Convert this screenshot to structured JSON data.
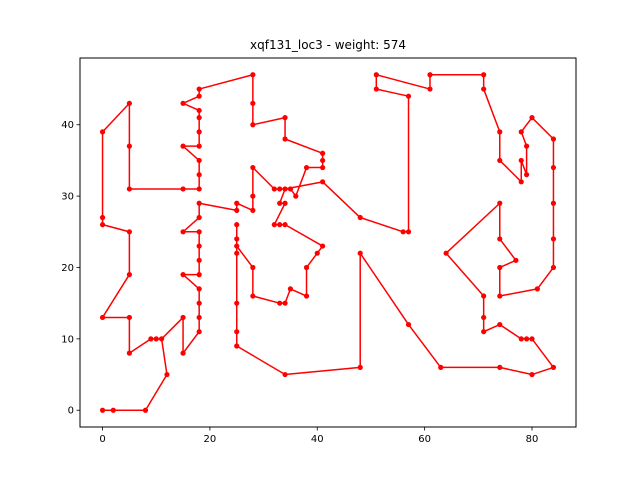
{
  "chart_data": {
    "type": "line",
    "title": "xqf131_loc3 - weight: 574",
    "xlabel": "",
    "ylabel": "",
    "xlim": [
      -4.2,
      88.2
    ],
    "ylim": [
      -2.35,
      49.35
    ],
    "xticks": [
      0,
      20,
      40,
      60,
      80
    ],
    "yticks": [
      0,
      10,
      20,
      30,
      40
    ],
    "grid": false,
    "legend": "none",
    "series_color": "#ff0000",
    "tour": [
      [
        0,
        0
      ],
      [
        2,
        0
      ],
      [
        8,
        0
      ],
      [
        12,
        5
      ],
      [
        11,
        10
      ],
      [
        10,
        10
      ],
      [
        9,
        10
      ],
      [
        5,
        8
      ],
      [
        5,
        13
      ],
      [
        0,
        13
      ],
      [
        5,
        19
      ],
      [
        5,
        25
      ],
      [
        0,
        26
      ],
      [
        0,
        27
      ],
      [
        0,
        39
      ],
      [
        5,
        43
      ],
      [
        5,
        37
      ],
      [
        5,
        31
      ],
      [
        15,
        31
      ],
      [
        18,
        31
      ],
      [
        18,
        33
      ],
      [
        18,
        35
      ],
      [
        15,
        37
      ],
      [
        18,
        37
      ],
      [
        18,
        39
      ],
      [
        18,
        41
      ],
      [
        18,
        42
      ],
      [
        15,
        43
      ],
      [
        18,
        44
      ],
      [
        18,
        45
      ],
      [
        28,
        47
      ],
      [
        28,
        43
      ],
      [
        28,
        40
      ],
      [
        34,
        41
      ],
      [
        34,
        38
      ],
      [
        41,
        36
      ],
      [
        41,
        35
      ],
      [
        41,
        34
      ],
      [
        38,
        34
      ],
      [
        36,
        30
      ],
      [
        35,
        31
      ],
      [
        34,
        31
      ],
      [
        33,
        31
      ],
      [
        32,
        31
      ],
      [
        28,
        34
      ],
      [
        28,
        30
      ],
      [
        28,
        28
      ],
      [
        25,
        29
      ],
      [
        25,
        28
      ],
      [
        18,
        29
      ],
      [
        18,
        27
      ],
      [
        15,
        25
      ],
      [
        18,
        25
      ],
      [
        18,
        23
      ],
      [
        18,
        21
      ],
      [
        18,
        19
      ],
      [
        15,
        19
      ],
      [
        18,
        17
      ],
      [
        18,
        15
      ],
      [
        18,
        13
      ],
      [
        18,
        11
      ],
      [
        15,
        8
      ],
      [
        15,
        13
      ],
      [
        11,
        10
      ]
    ],
    "tour_b": [
      [
        25,
        26
      ],
      [
        25,
        24
      ],
      [
        25,
        23
      ],
      [
        28,
        20
      ],
      [
        28,
        16
      ],
      [
        33,
        15
      ],
      [
        34,
        15
      ],
      [
        35,
        17
      ],
      [
        38,
        16
      ],
      [
        38,
        20
      ],
      [
        40,
        22
      ],
      [
        41,
        23
      ],
      [
        34,
        26
      ],
      [
        33,
        26
      ],
      [
        32,
        26
      ],
      [
        34,
        29
      ],
      [
        33,
        29
      ],
      [
        34,
        31
      ],
      [
        41,
        32
      ],
      [
        48,
        27
      ],
      [
        56,
        25
      ],
      [
        57,
        25
      ],
      [
        57,
        44
      ],
      [
        51,
        45
      ],
      [
        51,
        47
      ],
      [
        61,
        45
      ],
      [
        61,
        47
      ],
      [
        71,
        47
      ],
      [
        71,
        45
      ],
      [
        74,
        39
      ],
      [
        74,
        35
      ],
      [
        78,
        32
      ],
      [
        78,
        35
      ],
      [
        79,
        33
      ],
      [
        79,
        37
      ],
      [
        78,
        39
      ],
      [
        80,
        41
      ],
      [
        84,
        38
      ],
      [
        84,
        34
      ],
      [
        84,
        29
      ],
      [
        84,
        24
      ],
      [
        84,
        20
      ],
      [
        81,
        17
      ],
      [
        74,
        16
      ],
      [
        74,
        20
      ],
      [
        77,
        21
      ],
      [
        74,
        24
      ],
      [
        74,
        29
      ],
      [
        64,
        22
      ],
      [
        71,
        16
      ],
      [
        71,
        13
      ],
      [
        71,
        11
      ],
      [
        74,
        12
      ],
      [
        78,
        10
      ],
      [
        79,
        10
      ],
      [
        80,
        10
      ],
      [
        84,
        6
      ],
      [
        80,
        5
      ],
      [
        74,
        6
      ],
      [
        63,
        6
      ],
      [
        57,
        12
      ],
      [
        48,
        22
      ],
      [
        48,
        6
      ],
      [
        34,
        5
      ],
      [
        25,
        9
      ],
      [
        25,
        11
      ],
      [
        25,
        15
      ],
      [
        25,
        22
      ],
      [
        25,
        26
      ]
    ]
  }
}
